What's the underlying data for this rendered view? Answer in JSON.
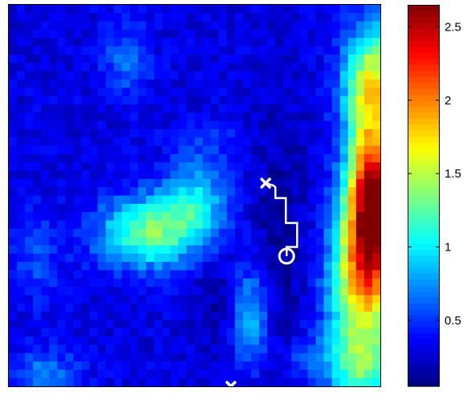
{
  "chart_data": {
    "type": "heatmap",
    "title": "",
    "xlabel": "",
    "ylabel": "",
    "grid": false,
    "colormap": "jet",
    "colorbar": {
      "position": "right",
      "range": [
        0.05,
        2.65
      ],
      "ticks": [
        0.5,
        1,
        1.5,
        2,
        2.5
      ],
      "tick_labels": [
        "0.5",
        "1",
        "1.5",
        "2",
        "2.5"
      ]
    },
    "grid_size": {
      "cols": 46,
      "rows": 46
    },
    "field": {
      "base": 0.3,
      "blobs": [
        {
          "cx": 44.5,
          "cy": 23.0,
          "sx": 2.2,
          "sy": 6.0,
          "amp": 2.3
        },
        {
          "cx": 44.5,
          "cy": 9.0,
          "sx": 2.5,
          "sy": 5.0,
          "amp": 1.3
        },
        {
          "cx": 43.5,
          "cy": 33.0,
          "sx": 3.0,
          "sy": 6.0,
          "amp": 1.4
        },
        {
          "cx": 43.0,
          "cy": 43.0,
          "sx": 3.0,
          "sy": 3.0,
          "amp": 0.8
        },
        {
          "cx": 17.0,
          "cy": 27.0,
          "sx": 4.5,
          "sy": 3.0,
          "amp": 1.0
        },
        {
          "cx": 22.5,
          "cy": 23.0,
          "sx": 3.0,
          "sy": 3.0,
          "amp": 0.6
        },
        {
          "cx": 29.5,
          "cy": 37.0,
          "sx": 1.6,
          "sy": 4.0,
          "amp": 0.6
        },
        {
          "cx": 14.0,
          "cy": 6.0,
          "sx": 2.0,
          "sy": 3.0,
          "amp": 0.35
        },
        {
          "cx": 4.0,
          "cy": 44.0,
          "sx": 3.0,
          "sy": 2.0,
          "amp": 0.4
        },
        {
          "cx": 3.0,
          "cy": 30.0,
          "sx": 2.0,
          "sy": 4.0,
          "amp": 0.25
        },
        {
          "cx": 24.0,
          "cy": 16.0,
          "sx": 3.0,
          "sy": 2.0,
          "amp": 0.2
        },
        {
          "cx": 36.0,
          "cy": 42.0,
          "sx": 2.0,
          "sy": 2.0,
          "amp": 0.25
        }
      ],
      "dips": [
        {
          "cx": 33.0,
          "cy": 28.0,
          "sx": 2.5,
          "sy": 12.0,
          "amp": 0.18
        },
        {
          "cx": 25.0,
          "cy": 35.0,
          "sx": 2.0,
          "sy": 4.0,
          "amp": 0.15
        }
      ]
    },
    "paths": [
      {
        "points": [
          [
            31.8,
            21.5
          ],
          [
            32.8,
            21.8
          ],
          [
            33.0,
            22.0
          ],
          [
            33.0,
            23.3
          ],
          [
            34.3,
            23.3
          ],
          [
            34.3,
            26.3
          ],
          [
            35.7,
            26.3
          ],
          [
            35.7,
            29.2
          ],
          [
            34.4,
            29.2
          ],
          [
            34.4,
            30.3
          ]
        ],
        "start_marker": "x",
        "end_marker": "o"
      },
      {
        "points": [
          [
            27.5,
            46.0
          ],
          [
            27.5,
            47.0
          ]
        ],
        "start_marker": "x",
        "end_marker": ""
      }
    ],
    "colors": {
      "path": "#ffffff",
      "frame": "#000000",
      "background": "#ffffff"
    }
  }
}
